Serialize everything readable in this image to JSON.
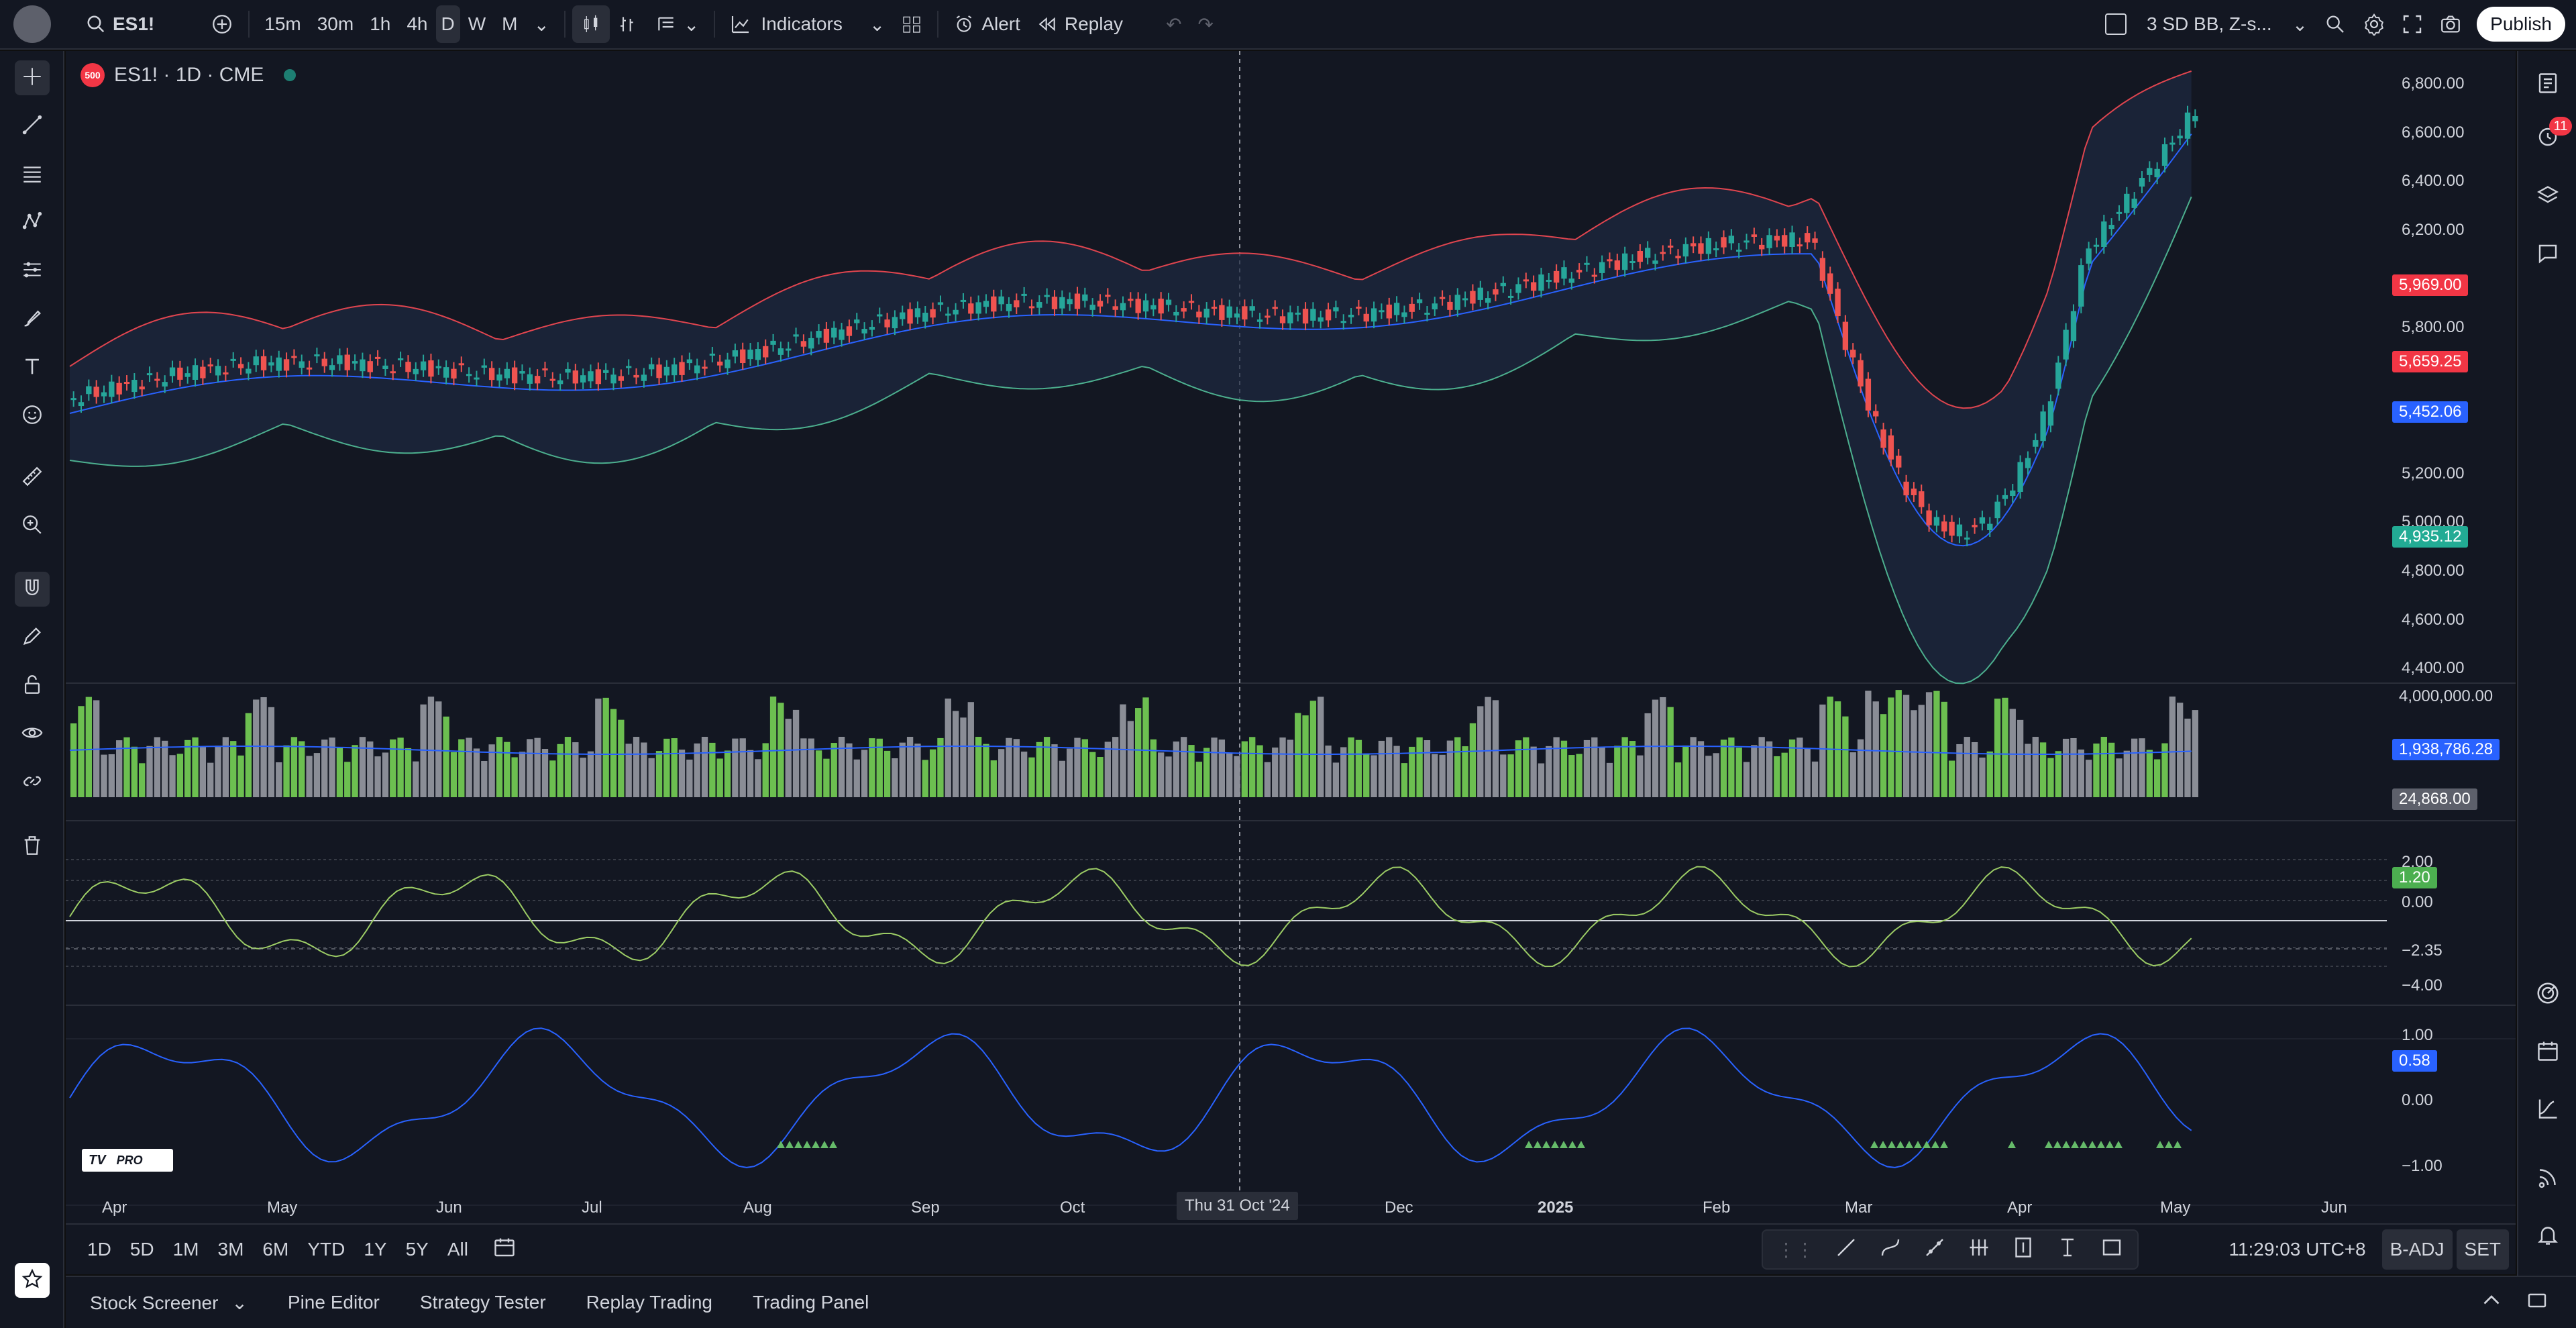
{
  "toolbar": {
    "symbol": "ES1!",
    "intervals": [
      "15m",
      "30m",
      "1h",
      "4h",
      "D",
      "W",
      "M"
    ],
    "active_interval": "D",
    "indicators": "Indicators",
    "alert": "Alert",
    "replay": "Replay",
    "layout_name": "3 SD BB, Z-s...",
    "publish": "Publish"
  },
  "legend": {
    "title": "ES1! · 1D · CME",
    "badge": "500"
  },
  "right_toolbar": {
    "notif_count": "11"
  },
  "price_scale": [
    "6,800.00",
    "6,600.00",
    "6,400.00",
    "6,200.00",
    "5,800.00",
    "5,200.00",
    "5,000.00",
    "4,800.00",
    "4,600.00",
    "4,400.00"
  ],
  "price_badges": [
    {
      "text": "5,969.00",
      "color": "#f23645"
    },
    {
      "text": "5,659.25",
      "color": "#f23645"
    },
    {
      "text": "5,452.06",
      "color": "#2962ff"
    },
    {
      "text": "4,935.12",
      "color": "#22ab94"
    }
  ],
  "volume_scale": {
    "top": "4,000,000.00",
    "ma": "1,938,786.28",
    "last": "24,868.00"
  },
  "osc1_scale": {
    "top": "2.00",
    "last": "1.20",
    "zero": "0.00",
    "cross": "−2.35",
    "bottom": "−4.00"
  },
  "osc2_scale": {
    "top": "1.00",
    "last": "0.58",
    "zero": "0.00",
    "bottom": "−1.00"
  },
  "time_axis": [
    "Apr",
    "May",
    "Jun",
    "Jul",
    "Aug",
    "Sep",
    "Oct",
    "Dec",
    "2025",
    "Feb",
    "Mar",
    "Apr",
    "May",
    "Jun"
  ],
  "crosshair_date": "Thu 31 Oct '24",
  "bottom": {
    "ranges": [
      "1D",
      "5D",
      "1M",
      "3M",
      "6M",
      "YTD",
      "1Y",
      "5Y",
      "All"
    ],
    "clock": "11:29:03 UTC+8",
    "badj": "B-ADJ",
    "set": "SET"
  },
  "panels": [
    "Stock Screener",
    "Pine Editor",
    "Strategy Tester",
    "Replay Trading",
    "Trading Panel"
  ],
  "logo": "PRO",
  "colors": {
    "up": "#26a69a",
    "down": "#ef5350",
    "bb_upper": "#e0454f",
    "bb_lower": "#4caf8e",
    "basis": "#2962ff",
    "vol_up": "#6cbf50",
    "vol_down": "#8a8d96",
    "osc": "#9ccc65",
    "osc2": "#2962ff"
  }
}
